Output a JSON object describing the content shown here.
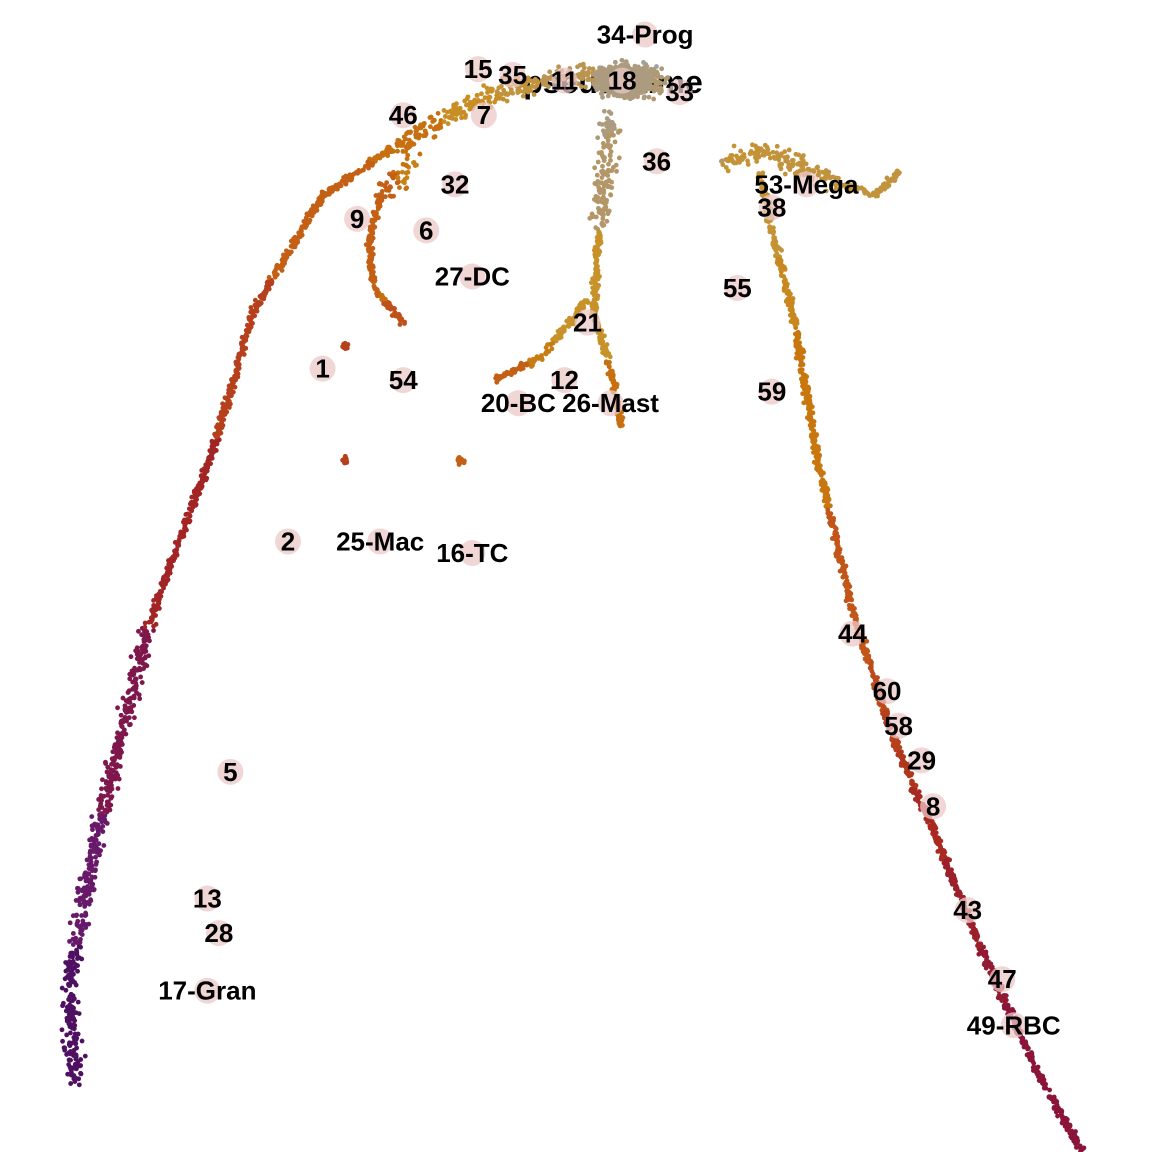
{
  "chart_data": {
    "type": "scatter",
    "title": "pseudotime",
    "xlabel": "",
    "ylabel": "",
    "axes": false,
    "grid": false,
    "legend": "none",
    "color_scale": {
      "name": "pseudotime",
      "stops": [
        "#3d0a5c",
        "#6a1a6a",
        "#8b1538",
        "#a82820",
        "#c0501a",
        "#c8780e",
        "#c8922a",
        "#b8955a",
        "#a0a0a0"
      ]
    },
    "trajectory": [
      {
        "name": "17-Gran",
        "points": [
          [
            0.065,
            0.06
          ],
          [
            0.06,
            0.15
          ],
          [
            0.085,
            0.28
          ],
          [
            0.13,
            0.46
          ],
          [
            0.185,
            0.61
          ],
          [
            0.22,
            0.73
          ],
          [
            0.28,
            0.83
          ],
          [
            0.34,
            0.87
          ],
          [
            0.415,
            0.915
          ],
          [
            0.49,
            0.935
          ],
          [
            0.56,
            0.93
          ]
        ]
      },
      {
        "name": "49-RBC",
        "points": [
          [
            0.94,
            0.0
          ],
          [
            0.9,
            0.07
          ],
          [
            0.85,
            0.18
          ],
          [
            0.81,
            0.28
          ],
          [
            0.775,
            0.36
          ],
          [
            0.74,
            0.47
          ],
          [
            0.71,
            0.6
          ],
          [
            0.69,
            0.72
          ],
          [
            0.67,
            0.8
          ],
          [
            0.66,
            0.85
          ]
        ]
      },
      {
        "name": "53-Mega",
        "points": [
          [
            0.63,
            0.86
          ],
          [
            0.665,
            0.87
          ],
          [
            0.73,
            0.84
          ],
          [
            0.76,
            0.83
          ],
          [
            0.78,
            0.85
          ]
        ]
      },
      {
        "name": "27-DC",
        "points": [
          [
            0.36,
            0.86
          ],
          [
            0.33,
            0.83
          ],
          [
            0.32,
            0.79
          ],
          [
            0.325,
            0.75
          ],
          [
            0.35,
            0.72
          ]
        ]
      },
      {
        "name": "26-Mast",
        "points": [
          [
            0.53,
            0.9
          ],
          [
            0.52,
            0.8
          ],
          [
            0.515,
            0.73
          ],
          [
            0.53,
            0.68
          ],
          [
            0.54,
            0.63
          ]
        ]
      },
      {
        "name": "20-BC",
        "points": [
          [
            0.51,
            0.74
          ],
          [
            0.47,
            0.69
          ],
          [
            0.43,
            0.67
          ]
        ]
      },
      {
        "name": "16-TC",
        "points": [
          [
            0.4,
            0.6
          ]
        ]
      },
      {
        "name": "25-Mac",
        "points": [
          [
            0.3,
            0.6
          ]
        ]
      },
      {
        "name": "54",
        "points": [
          [
            0.3,
            0.7
          ]
        ]
      }
    ],
    "clusters": [
      {
        "label": "34-Prog",
        "x": 0.56,
        "y": 0.97,
        "t": 0.0
      },
      {
        "label": "18",
        "x": 0.54,
        "y": 0.93,
        "t": 0.06
      },
      {
        "label": "33",
        "x": 0.59,
        "y": 0.92,
        "t": 0.08
      },
      {
        "label": "36",
        "x": 0.57,
        "y": 0.86,
        "t": 0.1
      },
      {
        "label": "11",
        "x": 0.49,
        "y": 0.93,
        "t": 0.15
      },
      {
        "label": "35",
        "x": 0.445,
        "y": 0.935,
        "t": 0.2
      },
      {
        "label": "15",
        "x": 0.415,
        "y": 0.94,
        "t": 0.24
      },
      {
        "label": "7",
        "x": 0.42,
        "y": 0.9,
        "t": 0.27
      },
      {
        "label": "46",
        "x": 0.35,
        "y": 0.9,
        "t": 0.4
      },
      {
        "label": "32",
        "x": 0.395,
        "y": 0.84,
        "t": 0.33
      },
      {
        "label": "6",
        "x": 0.37,
        "y": 0.8,
        "t": 0.4
      },
      {
        "label": "27-DC",
        "x": 0.41,
        "y": 0.76,
        "t": 0.45
      },
      {
        "label": "9",
        "x": 0.31,
        "y": 0.81,
        "t": 0.45
      },
      {
        "label": "1",
        "x": 0.28,
        "y": 0.68,
        "t": 0.55
      },
      {
        "label": "54",
        "x": 0.35,
        "y": 0.67,
        "t": 0.5
      },
      {
        "label": "2",
        "x": 0.25,
        "y": 0.53,
        "t": 0.65
      },
      {
        "label": "25-Mac",
        "x": 0.33,
        "y": 0.53,
        "t": 0.55
      },
      {
        "label": "16-TC",
        "x": 0.41,
        "y": 0.52,
        "t": 0.52
      },
      {
        "label": "20-BC",
        "x": 0.45,
        "y": 0.65,
        "t": 0.45
      },
      {
        "label": "21",
        "x": 0.51,
        "y": 0.72,
        "t": 0.25
      },
      {
        "label": "12",
        "x": 0.49,
        "y": 0.67,
        "t": 0.35
      },
      {
        "label": "26-Mast",
        "x": 0.53,
        "y": 0.65,
        "t": 0.4
      },
      {
        "label": "53-Mega",
        "x": 0.7,
        "y": 0.84,
        "t": 0.2
      },
      {
        "label": "38",
        "x": 0.67,
        "y": 0.82,
        "t": 0.22
      },
      {
        "label": "55",
        "x": 0.64,
        "y": 0.75,
        "t": 0.3
      },
      {
        "label": "59",
        "x": 0.67,
        "y": 0.66,
        "t": 0.38
      },
      {
        "label": "44",
        "x": 0.74,
        "y": 0.45,
        "t": 0.48
      },
      {
        "label": "60",
        "x": 0.77,
        "y": 0.4,
        "t": 0.52
      },
      {
        "label": "58",
        "x": 0.78,
        "y": 0.37,
        "t": 0.55
      },
      {
        "label": "29",
        "x": 0.8,
        "y": 0.34,
        "t": 0.58
      },
      {
        "label": "8",
        "x": 0.81,
        "y": 0.3,
        "t": 0.62
      },
      {
        "label": "43",
        "x": 0.84,
        "y": 0.21,
        "t": 0.68
      },
      {
        "label": "47",
        "x": 0.87,
        "y": 0.15,
        "t": 0.72
      },
      {
        "label": "49-RBC",
        "x": 0.88,
        "y": 0.11,
        "t": 0.75
      },
      {
        "label": "5",
        "x": 0.2,
        "y": 0.33,
        "t": 0.8
      },
      {
        "label": "13",
        "x": 0.18,
        "y": 0.22,
        "t": 0.88
      },
      {
        "label": "28",
        "x": 0.19,
        "y": 0.19,
        "t": 0.9
      },
      {
        "label": "17-Gran",
        "x": 0.18,
        "y": 0.14,
        "t": 0.95
      }
    ]
  }
}
